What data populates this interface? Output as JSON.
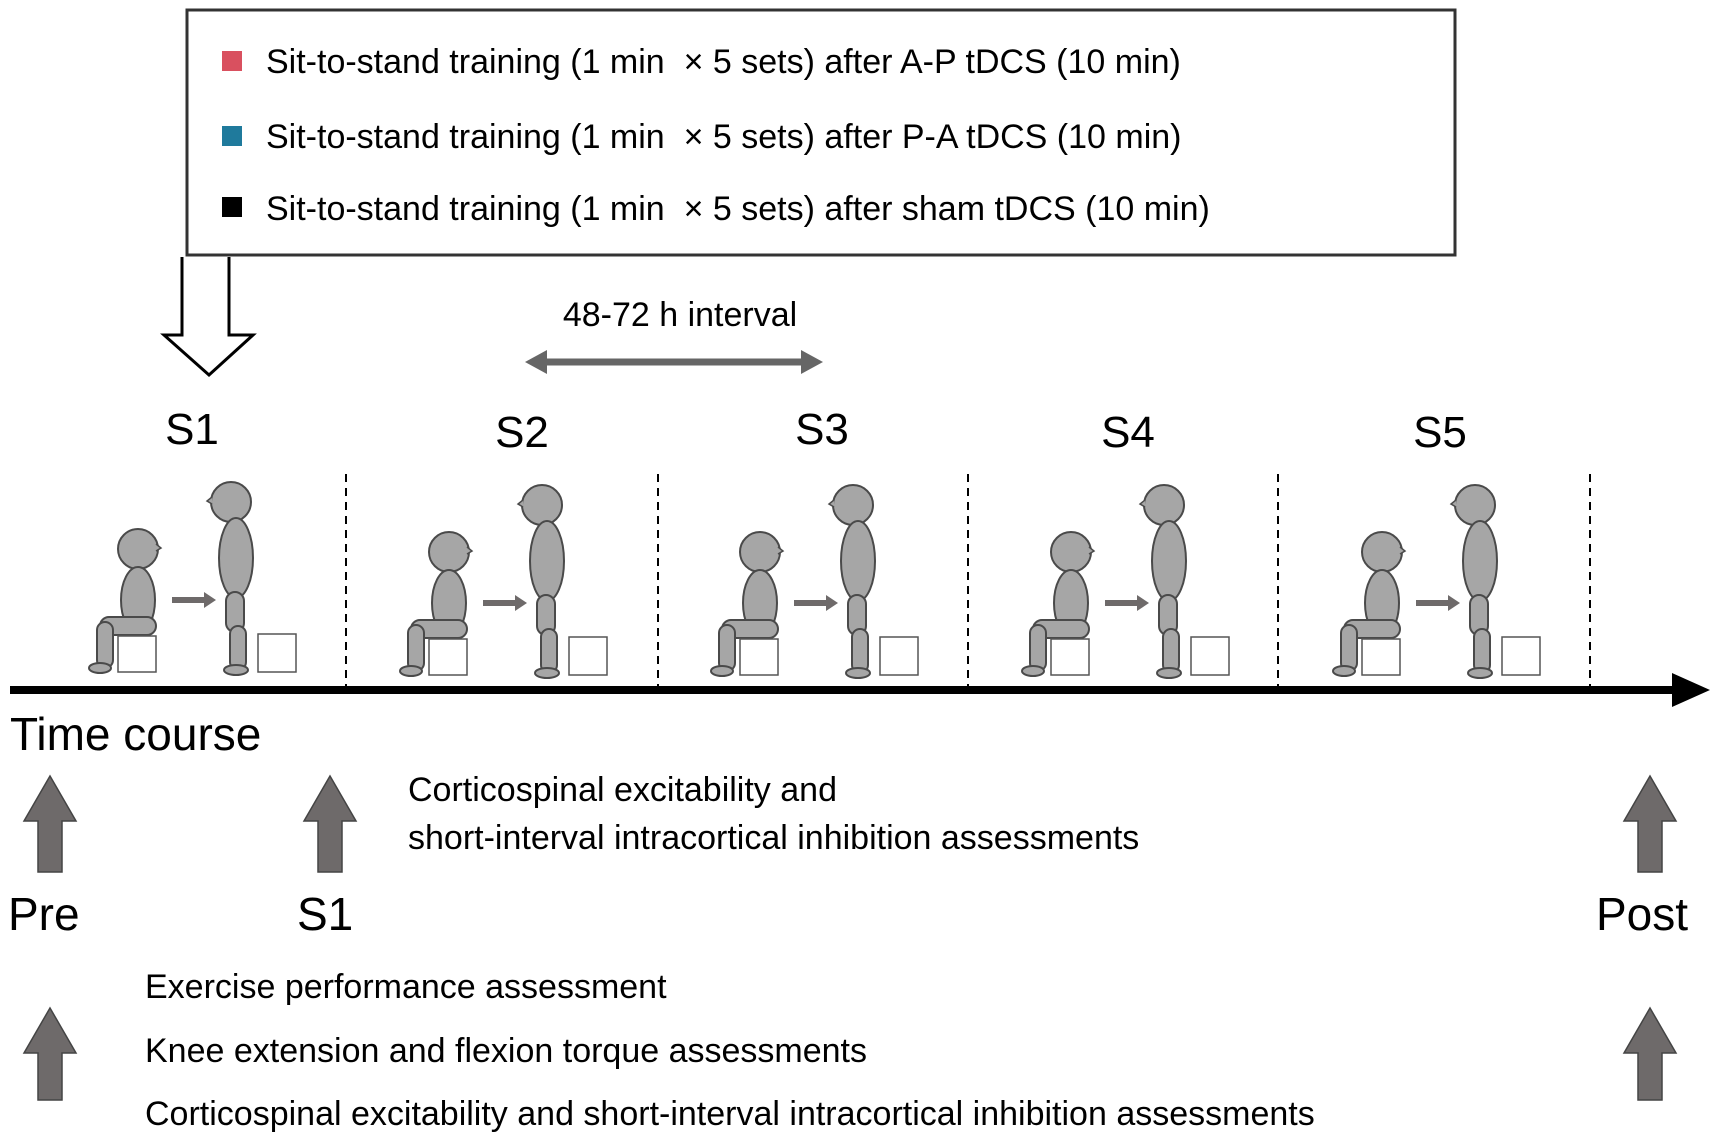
{
  "legend": {
    "items": [
      {
        "text": "Sit-to-stand training (1 min  × 5 sets) after A-P tDCS (10 min)",
        "color": "#d9505f"
      },
      {
        "text": "Sit-to-stand training (1 min  × 5 sets) after P-A tDCS (10 min)",
        "color": "#1f7a9c"
      },
      {
        "text": "Sit-to-stand training (1 min  × 5 sets) after sham tDCS (10 min)",
        "color": "#000000"
      }
    ]
  },
  "interval_label": "48-72 h interval",
  "sessions": [
    "S1",
    "S2",
    "S3",
    "S4",
    "S5"
  ],
  "timeline_label": "Time course",
  "assessment_points": {
    "pre": "Pre",
    "s1": "S1",
    "post": "Post"
  },
  "assessments_s1": [
    "Corticospinal excitability and",
    "short-interval intracortical inhibition assessments"
  ],
  "assessments_prepost": [
    "Exercise performance assessment",
    "Knee extension and flexion torque assessments",
    "Corticospinal excitability and short-interval intracortical inhibition assessments"
  ],
  "colors": {
    "figure_fill": "#a6a6a6",
    "figure_stroke": "#4a4a4a",
    "arrow_fill": "#6e6a6a"
  }
}
